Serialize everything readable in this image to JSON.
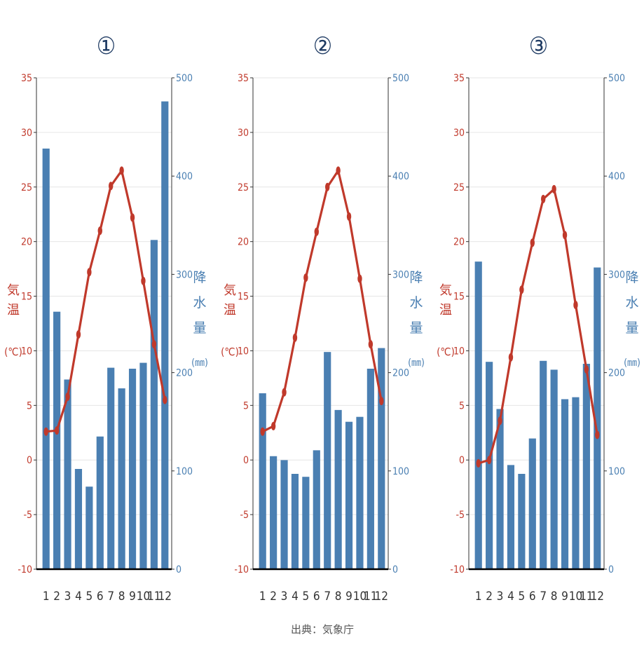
{
  "colors": {
    "temp": "#c0392b",
    "precip": "#4a7fb2",
    "title": "#1f3b63",
    "axis": "#333333",
    "grid": "#e6e6e6",
    "source": "#555555"
  },
  "source": "出典：気象庁",
  "chart_data": [
    {
      "type": "bar+line",
      "title": "①",
      "categories": [
        "1",
        "2",
        "3",
        "4",
        "5",
        "6",
        "7",
        "8",
        "9",
        "10",
        "11",
        "12"
      ],
      "y_left": {
        "label_chars": [
          "気",
          "温"
        ],
        "unit": "(℃)",
        "lim": [
          -10,
          35
        ],
        "ticks": [
          "35",
          "30",
          "25",
          "20",
          "15",
          "10",
          "5",
          "0",
          "-5",
          "-10"
        ]
      },
      "y_right": {
        "label_chars": [
          "降",
          "水",
          "量"
        ],
        "unit": "(㎜)",
        "lim": [
          0,
          500
        ],
        "ticks": [
          "500",
          "400",
          "300",
          "200",
          "100",
          "0"
        ]
      },
      "grid": true,
      "temperature": [
        2.6,
        2.7,
        5.8,
        11.5,
        17.2,
        21.0,
        25.1,
        26.5,
        22.2,
        16.4,
        10.6,
        5.5
      ],
      "precipitation": [
        428,
        262,
        193,
        102,
        84,
        135,
        205,
        184,
        204,
        210,
        335,
        476
      ]
    },
    {
      "type": "bar+line",
      "title": "②",
      "categories": [
        "1",
        "2",
        "3",
        "4",
        "5",
        "6",
        "7",
        "8",
        "9",
        "10",
        "11",
        "12"
      ],
      "y_left": {
        "label_chars": [
          "気",
          "温"
        ],
        "unit": "(℃)",
        "lim": [
          -10,
          35
        ],
        "ticks": [
          "35",
          "30",
          "25",
          "20",
          "15",
          "10",
          "5",
          "0",
          "-5",
          "-10"
        ]
      },
      "y_right": {
        "label_chars": [
          "降",
          "水",
          "量"
        ],
        "unit": "(㎜)",
        "lim": [
          0,
          500
        ],
        "ticks": [
          "500",
          "400",
          "300",
          "200",
          "100",
          "0"
        ]
      },
      "grid": true,
      "temperature": [
        2.6,
        3.1,
        6.2,
        11.2,
        16.7,
        20.9,
        25.0,
        26.5,
        22.3,
        16.6,
        10.6,
        5.4
      ],
      "precipitation": [
        179,
        115,
        111,
        97,
        94,
        121,
        221,
        162,
        150,
        155,
        204,
        225
      ]
    },
    {
      "type": "bar+line",
      "title": "③",
      "categories": [
        "1",
        "2",
        "3",
        "4",
        "5",
        "6",
        "7",
        "8",
        "9",
        "10",
        "11",
        "12"
      ],
      "y_left": {
        "label_chars": [
          "気",
          "温"
        ],
        "unit": "(℃)",
        "lim": [
          -10,
          35
        ],
        "ticks": [
          "35",
          "30",
          "25",
          "20",
          "15",
          "10",
          "5",
          "0",
          "-5",
          "-10"
        ]
      },
      "y_right": {
        "label_chars": [
          "降",
          "水",
          "量"
        ],
        "unit": "(㎜)",
        "lim": [
          0,
          500
        ],
        "ticks": [
          "500",
          "400",
          "300",
          "200",
          "100",
          "0"
        ]
      },
      "grid": true,
      "temperature": [
        -0.3,
        0.0,
        3.6,
        9.4,
        15.6,
        19.9,
        23.9,
        24.8,
        20.6,
        14.2,
        8.3,
        2.3
      ],
      "precipitation": [
        313,
        211,
        163,
        106,
        97,
        133,
        212,
        203,
        173,
        175,
        209,
        307
      ]
    }
  ]
}
